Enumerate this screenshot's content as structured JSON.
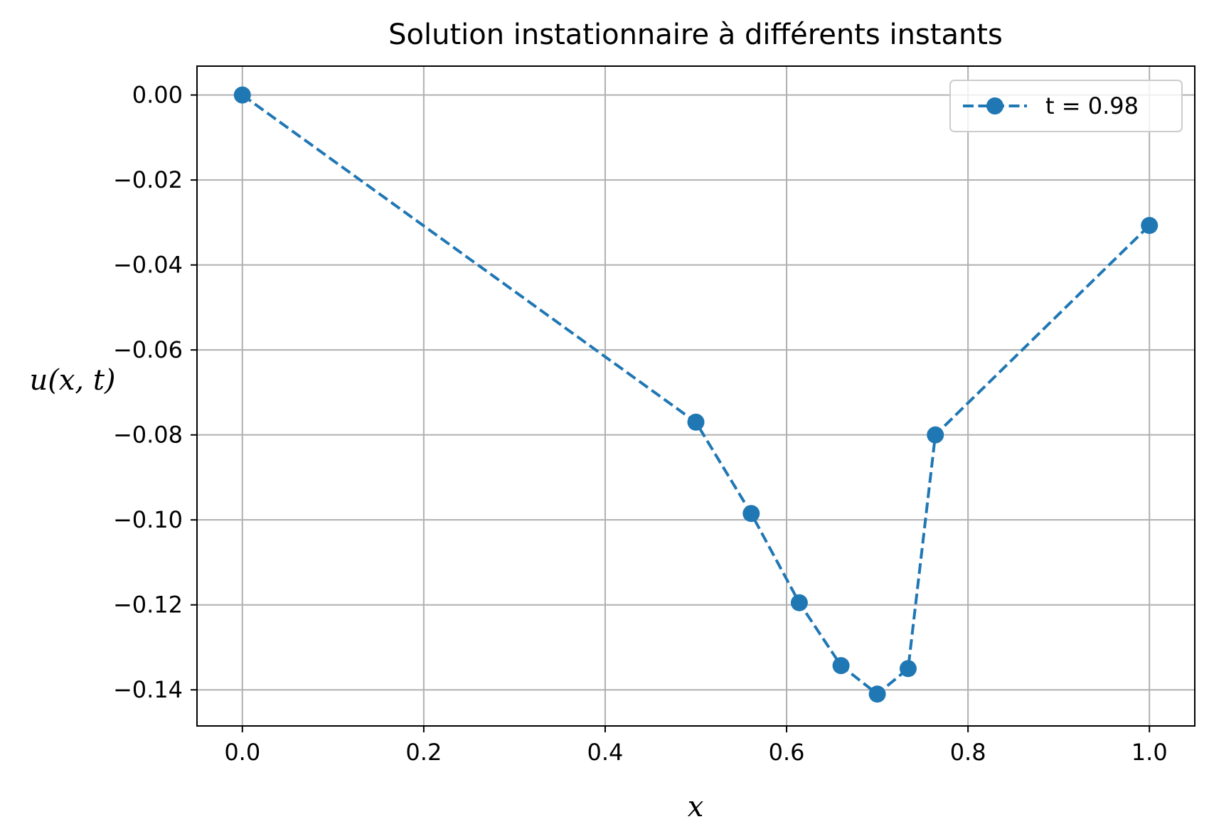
{
  "chart_data": {
    "type": "line",
    "title": "Solution instationnaire à différents instants",
    "xlabel": "x",
    "ylabel": "u(x, t)",
    "xlim": [
      -0.05,
      1.05
    ],
    "ylim": [
      -0.1485,
      0.0068
    ],
    "x_ticks": [
      0.0,
      0.2,
      0.4,
      0.6,
      0.8,
      1.0
    ],
    "x_tick_labels": [
      "0.0",
      "0.2",
      "0.4",
      "0.6",
      "0.8",
      "1.0"
    ],
    "y_ticks": [
      0.0,
      -0.02,
      -0.04,
      -0.06,
      -0.08,
      -0.1,
      -0.12,
      -0.14
    ],
    "y_tick_labels": [
      "0.00",
      "−0.02",
      "−0.04",
      "−0.06",
      "−0.08",
      "−0.10",
      "−0.12",
      "−0.14"
    ],
    "grid": true,
    "legend_position": "top-right",
    "series": [
      {
        "name": "t = 0.98",
        "color": "#1f77b4",
        "line_style": "dashed",
        "marker": "circle",
        "x": [
          0.0,
          0.5,
          0.561,
          0.614,
          0.66,
          0.7,
          0.734,
          0.764,
          1.0
        ],
        "y": [
          0.0,
          -0.077,
          -0.0985,
          -0.1195,
          -0.1343,
          -0.141,
          -0.135,
          -0.08,
          -0.0307
        ]
      }
    ]
  }
}
